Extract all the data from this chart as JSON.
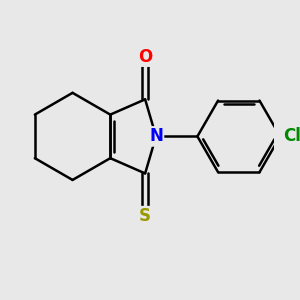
{
  "bg_color": "#e8e8e8",
  "bond_color": "#000000",
  "bond_width": 1.8,
  "atom_colors": {
    "O": "#ff0000",
    "N": "#0000ff",
    "S": "#999900",
    "Cl": "#008800"
  },
  "font_size": 12,
  "figsize": [
    3.0,
    3.0
  ],
  "dpi": 100,
  "xlim": [
    0,
    10
  ],
  "ylim": [
    0,
    10
  ]
}
